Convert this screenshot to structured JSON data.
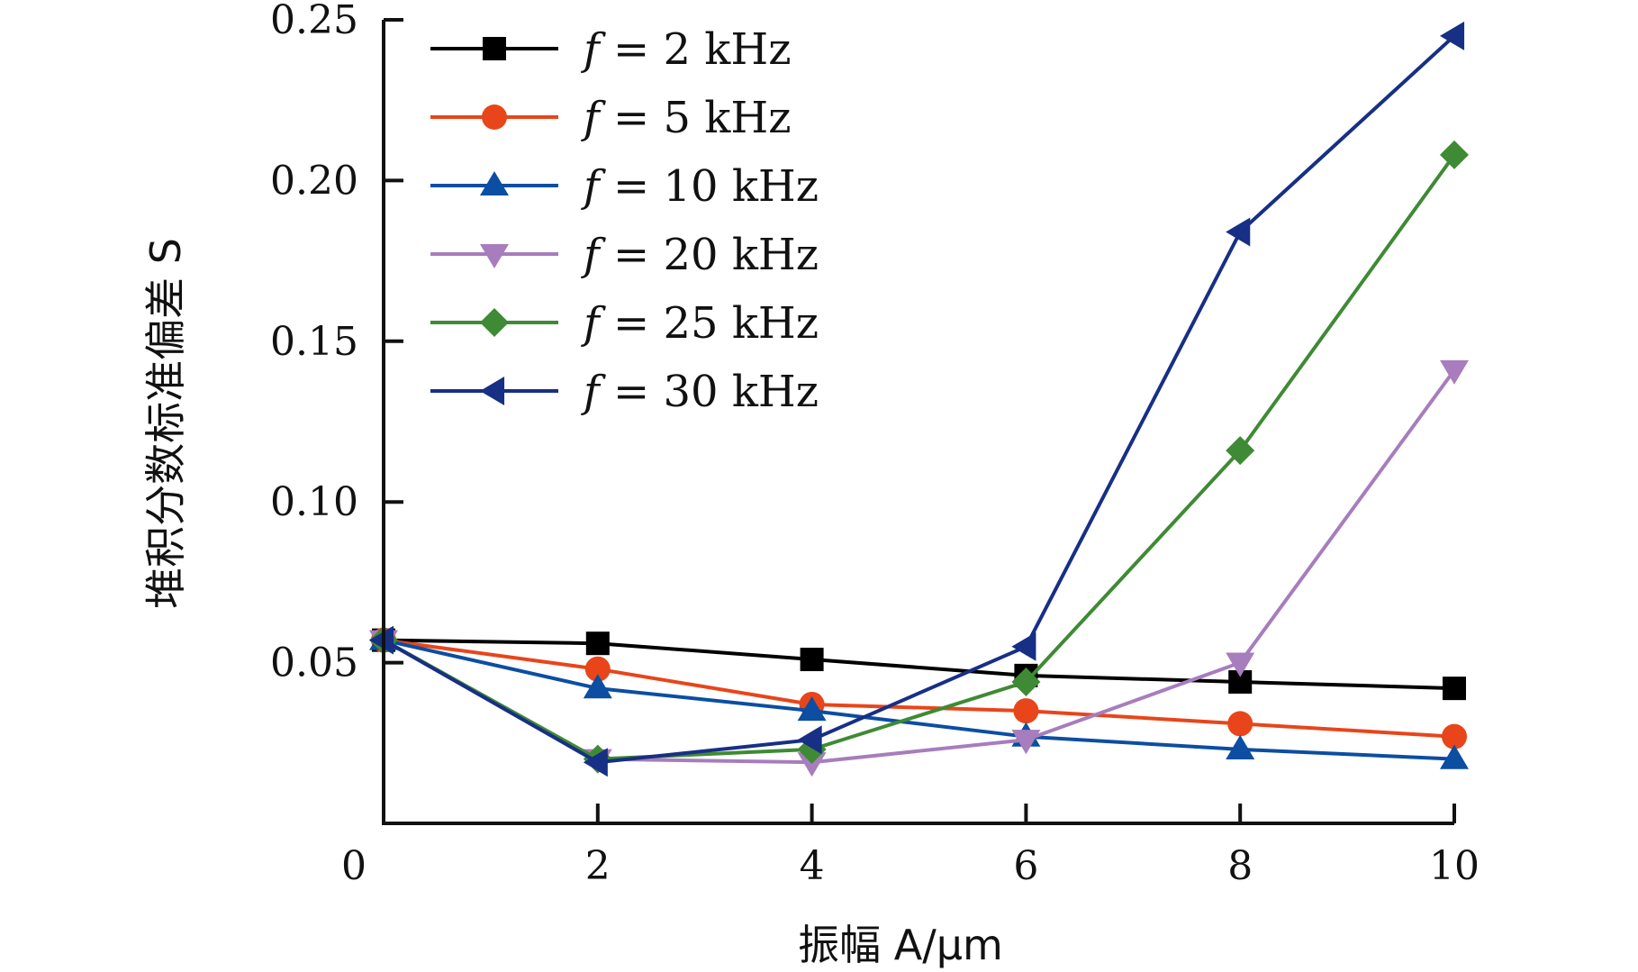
{
  "chart_data": {
    "type": "line",
    "title": "",
    "xlabel": "振幅 A/μm",
    "ylabel": "堆积分数标准偏差 S",
    "xlim": [
      0,
      10
    ],
    "ylim": [
      0,
      0.25
    ],
    "x_ticks": [
      "0",
      "2",
      "4",
      "6",
      "8",
      "10"
    ],
    "y_ticks": [
      "0.05",
      "0.10",
      "0.15",
      "0.20",
      "0.25"
    ],
    "grid": false,
    "legend_position": "top-left",
    "x": [
      0,
      2,
      4,
      6,
      8,
      10
    ],
    "series": [
      {
        "name": "f = 2 kHz",
        "legend_var": "f",
        "legend_rest": " = 2 kHz",
        "color": "#000000",
        "marker": "square",
        "values": [
          0.057,
          0.056,
          0.051,
          0.046,
          0.044,
          0.042
        ]
      },
      {
        "name": "f = 5 kHz",
        "legend_var": "f",
        "legend_rest": " = 5 kHz",
        "color": "#e8451a",
        "marker": "circle",
        "values": [
          0.057,
          0.048,
          0.037,
          0.035,
          0.031,
          0.027
        ]
      },
      {
        "name": "f = 10 kHz",
        "legend_var": "f",
        "legend_rest": " = 10 kHz",
        "color": "#0b4ea2",
        "marker": "triangle-up",
        "values": [
          0.057,
          0.042,
          0.035,
          0.027,
          0.023,
          0.02
        ]
      },
      {
        "name": "f = 20 kHz",
        "legend_var": "f",
        "legend_rest": " = 20 kHz",
        "color": "#a77dbd",
        "marker": "triangle-down",
        "values": [
          0.057,
          0.02,
          0.019,
          0.026,
          0.05,
          0.141
        ]
      },
      {
        "name": "f = 25 kHz",
        "legend_var": "f",
        "legend_rest": " = 25 kHz",
        "color": "#3f8a34",
        "marker": "diamond",
        "values": [
          0.057,
          0.02,
          0.023,
          0.044,
          0.116,
          0.208
        ]
      },
      {
        "name": "f = 30 kHz",
        "legend_var": "f",
        "legend_rest": " = 30 kHz",
        "color": "#172f85",
        "marker": "triangle-left",
        "values": [
          0.057,
          0.019,
          0.026,
          0.055,
          0.184,
          0.245
        ]
      }
    ]
  }
}
